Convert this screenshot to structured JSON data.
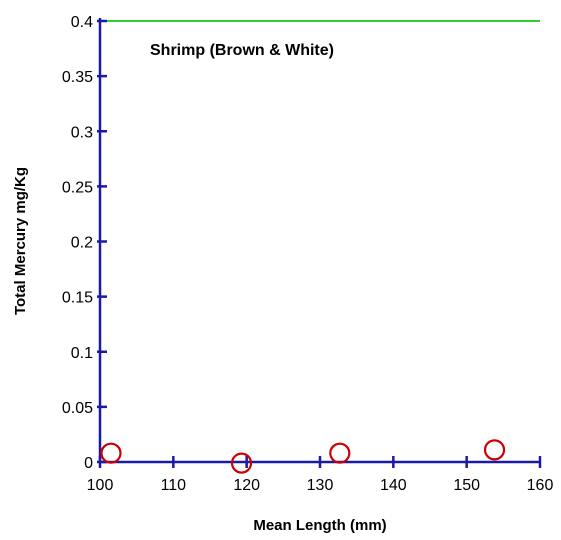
{
  "chart_data": {
    "type": "scatter",
    "title": "Shrimp (Brown & White)",
    "xlabel": "Mean Length (mm)",
    "ylabel": "Total Mercury mg/Kg",
    "xlim": [
      100,
      160
    ],
    "ylim": [
      0,
      0.4
    ],
    "x_ticks": [
      "100",
      "110",
      "120",
      "130",
      "140",
      "150",
      "160"
    ],
    "y_ticks": [
      "0",
      "0.05",
      "0.1",
      "0.15",
      "0.2",
      "0.25",
      "0.3",
      "0.35",
      "0.4"
    ],
    "grid": false,
    "legend": "none",
    "reference_line": {
      "y": 0.4,
      "color": "#33cc33"
    },
    "axis_color": "#1a1aa6",
    "marker_color": "#cc0000",
    "marker": "open-circle",
    "series": [
      {
        "x": [
          101.5,
          119.3,
          132.7,
          153.8
        ],
        "y": [
          0.008,
          -0.001,
          0.008,
          0.011
        ]
      }
    ]
  }
}
